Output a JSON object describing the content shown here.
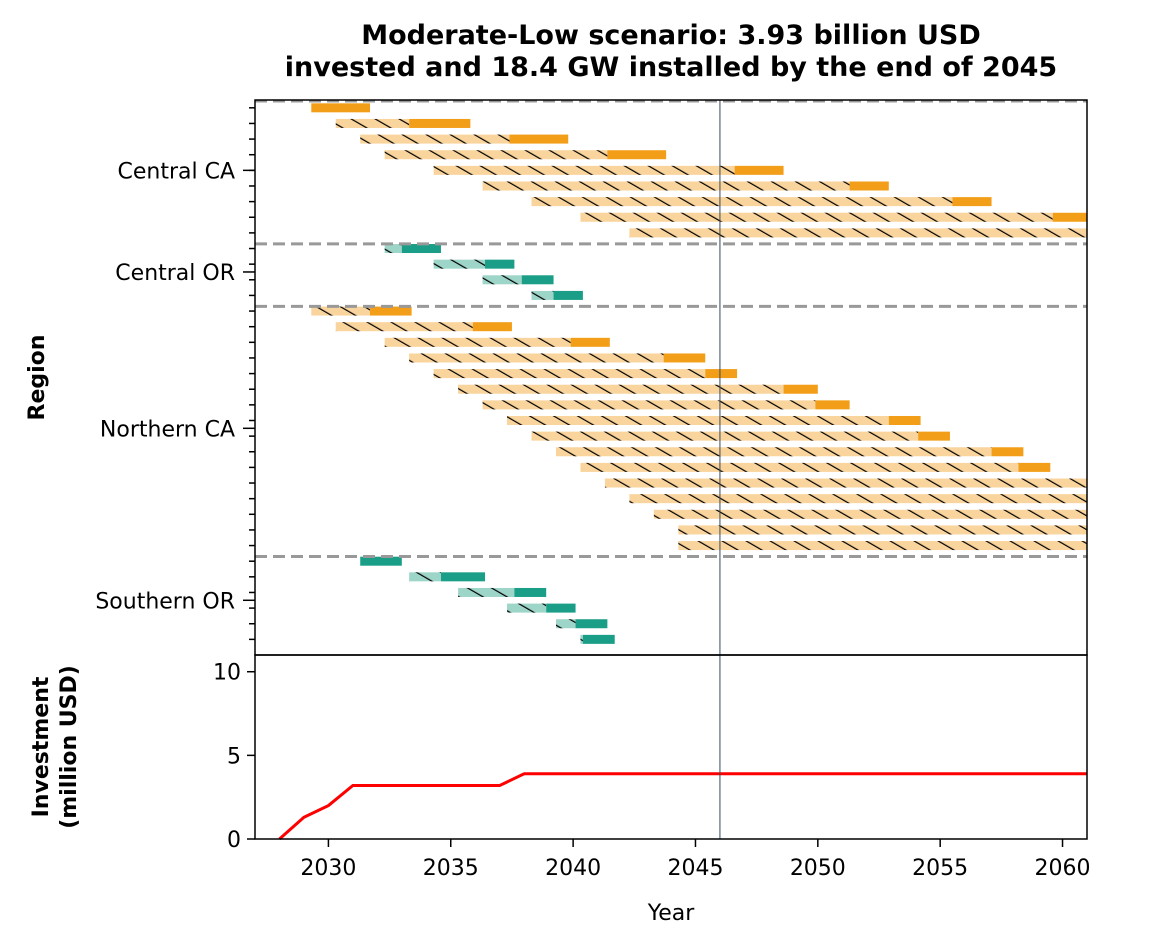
{
  "chart_data": [
    {
      "type": "gantt",
      "title": "Moderate-Low scenario: 3.93 billion USD\ninvested and 18.4 GW installed by the end of 2045",
      "ylabel": "Region",
      "xlim": [
        2027,
        2061
      ],
      "reference_year": 2046,
      "colors": {
        "orange": "#f29e18",
        "orange_light": "#f9d49c",
        "teal": "#1a9e88",
        "teal_light": "#9dd5c8",
        "separator": "#999999",
        "ref_line": "#34495e"
      },
      "regions": [
        {
          "name": "Central CA",
          "color": "orange",
          "bars": [
            {
              "start": 2029.3,
              "construct_end": 2029.3,
              "end": 2031.7
            },
            {
              "start": 2030.3,
              "construct_end": 2033.3,
              "end": 2035.8
            },
            {
              "start": 2031.3,
              "construct_end": 2037.4,
              "end": 2039.8
            },
            {
              "start": 2032.3,
              "construct_end": 2041.4,
              "end": 2043.8
            },
            {
              "start": 2034.3,
              "construct_end": 2046.6,
              "end": 2048.6
            },
            {
              "start": 2036.3,
              "construct_end": 2051.3,
              "end": 2052.9
            },
            {
              "start": 2038.3,
              "construct_end": 2055.5,
              "end": 2057.1
            },
            {
              "start": 2040.3,
              "construct_end": 2059.6,
              "end": 2061.0
            },
            {
              "start": 2042.3,
              "construct_end": 2061.0,
              "end": 2061.0
            }
          ]
        },
        {
          "name": "Central OR",
          "color": "teal",
          "bars": [
            {
              "start": 2032.3,
              "construct_end": 2033.0,
              "end": 2034.6
            },
            {
              "start": 2034.3,
              "construct_end": 2036.4,
              "end": 2037.6
            },
            {
              "start": 2036.3,
              "construct_end": 2037.9,
              "end": 2039.2
            },
            {
              "start": 2038.3,
              "construct_end": 2039.2,
              "end": 2040.4
            }
          ]
        },
        {
          "name": "Northern CA",
          "color": "orange",
          "bars": [
            {
              "start": 2029.3,
              "construct_end": 2031.7,
              "end": 2033.4
            },
            {
              "start": 2030.3,
              "construct_end": 2035.9,
              "end": 2037.5
            },
            {
              "start": 2032.3,
              "construct_end": 2039.9,
              "end": 2041.5
            },
            {
              "start": 2033.3,
              "construct_end": 2043.7,
              "end": 2045.4
            },
            {
              "start": 2034.3,
              "construct_end": 2045.4,
              "end": 2046.7
            },
            {
              "start": 2035.3,
              "construct_end": 2048.6,
              "end": 2050.0
            },
            {
              "start": 2036.3,
              "construct_end": 2049.9,
              "end": 2051.3
            },
            {
              "start": 2037.3,
              "construct_end": 2052.9,
              "end": 2054.2
            },
            {
              "start": 2038.3,
              "construct_end": 2054.1,
              "end": 2055.4
            },
            {
              "start": 2039.3,
              "construct_end": 2057.1,
              "end": 2058.4
            },
            {
              "start": 2040.3,
              "construct_end": 2058.2,
              "end": 2059.5
            },
            {
              "start": 2041.3,
              "construct_end": 2061.0,
              "end": 2061.0
            },
            {
              "start": 2042.3,
              "construct_end": 2061.0,
              "end": 2061.0
            },
            {
              "start": 2043.3,
              "construct_end": 2061.0,
              "end": 2061.0
            },
            {
              "start": 2044.3,
              "construct_end": 2061.0,
              "end": 2061.0
            },
            {
              "start": 2044.3,
              "construct_end": 2061.0,
              "end": 2061.0
            }
          ]
        },
        {
          "name": "Southern OR",
          "color": "teal",
          "bars": [
            {
              "start": 2031.3,
              "construct_end": 2031.3,
              "end": 2033.0
            },
            {
              "start": 2033.3,
              "construct_end": 2034.6,
              "end": 2036.4
            },
            {
              "start": 2035.3,
              "construct_end": 2037.6,
              "end": 2038.9
            },
            {
              "start": 2037.3,
              "construct_end": 2038.9,
              "end": 2040.1
            },
            {
              "start": 2039.3,
              "construct_end": 2040.1,
              "end": 2041.4
            },
            {
              "start": 2040.3,
              "construct_end": 2040.4,
              "end": 2041.7
            }
          ]
        }
      ]
    },
    {
      "type": "line",
      "ylabel": "Investment\n(million USD)",
      "xlabel": "Year",
      "xlim": [
        2027,
        2061
      ],
      "ylim": [
        0,
        11
      ],
      "yticks": [
        0,
        5,
        10
      ],
      "xticks": [
        2030,
        2035,
        2040,
        2045,
        2050,
        2055,
        2060
      ],
      "color": "#ff0000",
      "x": [
        2028,
        2029,
        2030,
        2031,
        2037,
        2038,
        2061
      ],
      "y": [
        0,
        1.3,
        2.0,
        3.2,
        3.2,
        3.9,
        3.9
      ]
    }
  ]
}
